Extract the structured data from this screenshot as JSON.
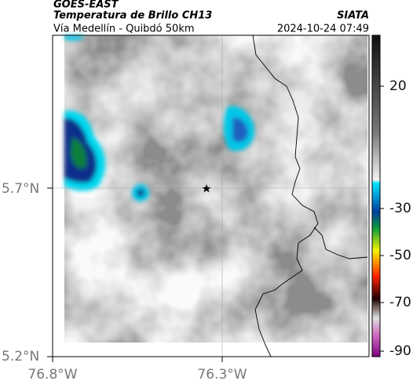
{
  "header": {
    "title": "GOES-EAST",
    "subtitle": "Temperatura de Brillo CH13",
    "route": "Vía Medellín - Quibdó 50km",
    "source": "SIATA",
    "timestamp": "2024-10-24 07:49"
  },
  "axes": {
    "y_labels": [
      "5.7°N",
      "5.2°N"
    ],
    "x_labels": [
      "76.8°W",
      "76.3°W"
    ]
  },
  "colorbar": {
    "labels": [
      "20",
      "-30",
      "-50",
      "-70",
      "-90"
    ]
  }
}
